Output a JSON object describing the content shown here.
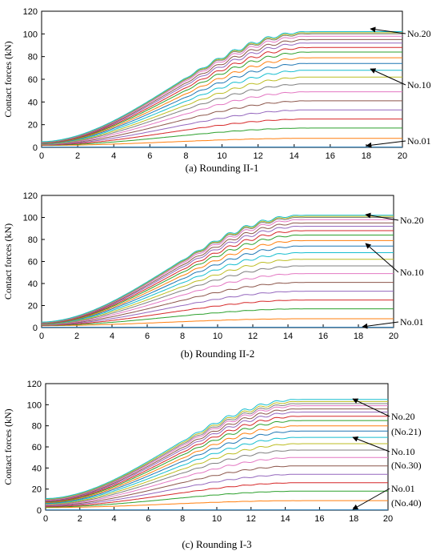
{
  "chart_data": [
    {
      "type": "line",
      "caption": "(a) Rounding II-1",
      "ylabel": "Contact forces (kN)",
      "xlim": [
        0,
        20
      ],
      "ylim": [
        0,
        120
      ],
      "xticks": [
        "0",
        "2",
        "4",
        "6",
        "8",
        "10",
        "12",
        "14",
        "16",
        "18",
        "20"
      ],
      "yticks": [
        "0",
        "20",
        "40",
        "60",
        "80",
        "100",
        "120"
      ],
      "series_count": 20,
      "series_final_values": [
        0,
        8,
        17,
        25,
        33,
        41,
        49,
        56,
        62,
        68,
        74,
        79,
        84,
        88,
        92,
        95,
        98,
        100,
        101,
        102
      ],
      "series_start_range": [
        1.5,
        5
      ],
      "annotations": [
        {
          "text": "No.20",
          "x": 18,
          "y": 102
        },
        {
          "text": "No.10",
          "x": 18,
          "y": 70
        },
        {
          "text": "No.01",
          "x": 18,
          "y": 1
        }
      ]
    },
    {
      "type": "line",
      "caption": "(b) Rounding II-2",
      "ylabel": "Contact forces (kN)",
      "xlim": [
        0,
        20
      ],
      "ylim": [
        0,
        120
      ],
      "xticks": [
        "0",
        "2",
        "4",
        "6",
        "8",
        "10",
        "12",
        "14",
        "16",
        "18",
        "20"
      ],
      "yticks": [
        "0",
        "20",
        "40",
        "60",
        "80",
        "100",
        "120"
      ],
      "series_count": 20,
      "series_final_values": [
        0,
        8,
        17,
        25,
        33,
        41,
        49,
        56,
        62,
        68,
        74,
        79,
        84,
        88,
        92,
        95,
        98,
        100,
        101,
        102
      ],
      "series_start_range": [
        1.5,
        5
      ],
      "annotations": [
        {
          "text": "No.20",
          "x": 18,
          "y": 102
        },
        {
          "text": "No.10",
          "x": 18,
          "y": 77
        },
        {
          "text": "No.01",
          "x": 18,
          "y": 1
        }
      ]
    },
    {
      "type": "line",
      "caption": "(c) Rounding I-3",
      "ylabel": "Contact forces (kN)",
      "xlim": [
        0,
        20
      ],
      "ylim": [
        0,
        120
      ],
      "xticks": [
        "0",
        "2",
        "4",
        "6",
        "8",
        "10",
        "12",
        "14",
        "16",
        "18",
        "20"
      ],
      "yticks": [
        "0",
        "20",
        "40",
        "60",
        "80",
        "100",
        "120"
      ],
      "series_count": 20,
      "series_final_values": [
        0,
        9,
        18,
        26,
        34,
        42,
        50,
        57,
        63,
        69,
        75,
        80,
        85,
        89,
        93,
        96,
        99,
        101,
        103,
        105
      ],
      "series_start_range": [
        2,
        11
      ],
      "annotations": [
        {
          "text": "No.20",
          "x": 18,
          "y": 105
        },
        {
          "text": "(No.21)",
          "x": 18,
          "y": 105
        },
        {
          "text": "No.10",
          "x": 18,
          "y": 70
        },
        {
          "text": "(No.30)",
          "x": 18,
          "y": 70
        },
        {
          "text": "No.01",
          "x": 18,
          "y": 0
        },
        {
          "text": "(No.40)",
          "x": 18,
          "y": 0
        }
      ]
    }
  ],
  "colors": [
    "#1f77b4",
    "#ff7f0e",
    "#2ca02c",
    "#d62728",
    "#9467bd",
    "#8c564b",
    "#e377c2",
    "#7f7f7f",
    "#bcbd22",
    "#17becf",
    "#1f77b4",
    "#ff7f0e",
    "#2ca02c",
    "#d62728",
    "#9467bd",
    "#8c564b",
    "#e377c2",
    "#7f7f7f",
    "#bcbd22",
    "#17becf"
  ]
}
